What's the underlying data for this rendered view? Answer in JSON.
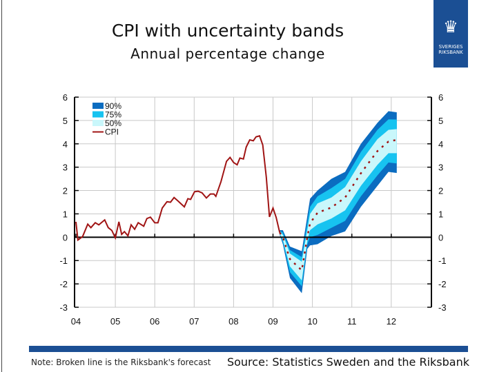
{
  "header": {
    "title": "CPI with uncertainty bands",
    "subtitle": "Annual percentage change"
  },
  "logo": {
    "text": "SVERIGES RIKSBANK"
  },
  "footer": {
    "note": "Note: Broken line is the Riksbank's forecast",
    "source": "Source: Statistics Sweden and the Riksbank"
  },
  "colors": {
    "band90": "#0b6cc0",
    "band75": "#17c3f0",
    "band50": "#c9f7fb",
    "cpi": "#a01414",
    "brand": "#1b4f94"
  },
  "chart_data": {
    "type": "area",
    "title": "CPI with uncertainty bands",
    "subtitle": "Annual percentage change",
    "xlabel": "",
    "ylabel": "",
    "xlim": [
      2004,
      2012.5
    ],
    "ylim": [
      -3,
      6
    ],
    "x_ticks": [
      2004,
      2005,
      2006,
      2007,
      2008,
      2009,
      2010,
      2011,
      2012
    ],
    "x_tick_labels": [
      "04",
      "05",
      "06",
      "07",
      "08",
      "09",
      "10",
      "11",
      "12"
    ],
    "y_ticks": [
      "-3",
      "-2",
      "-1",
      "0",
      "1",
      "2",
      "3",
      "4",
      "5",
      "6"
    ],
    "grid": true,
    "legend_position": "top-left",
    "legend": [
      "90%",
      "75%",
      "50%",
      "CPI"
    ],
    "cpi": {
      "name": "CPI",
      "x": [
        2004.0,
        2004.05,
        2004.17,
        2004.3,
        2004.38,
        2004.49,
        2004.58,
        2004.73,
        2004.82,
        2004.91,
        2005.0,
        2005.09,
        2005.16,
        2005.23,
        2005.32,
        2005.4,
        2005.49,
        2005.58,
        2005.72,
        2005.8,
        2005.89,
        2006.0,
        2006.08,
        2006.19,
        2006.31,
        2006.4,
        2006.49,
        2006.59,
        2006.75,
        2006.84,
        2006.91,
        2007.01,
        2007.1,
        2007.2,
        2007.31,
        2007.41,
        2007.5,
        2007.55,
        2007.68,
        2007.82,
        2007.91,
        2008.0,
        2008.09,
        2008.16,
        2008.25,
        2008.32,
        2008.41,
        2008.5,
        2008.57,
        2008.66,
        2008.74,
        2008.83,
        2008.91,
        2009.0,
        2009.08,
        2009.17
      ],
      "y": [
        0.66,
        -0.12,
        0.03,
        0.56,
        0.41,
        0.62,
        0.53,
        0.74,
        0.41,
        0.29,
        -0.03,
        0.66,
        0.12,
        0.24,
        0.06,
        0.53,
        0.34,
        0.62,
        0.47,
        0.8,
        0.86,
        0.62,
        0.62,
        1.25,
        1.52,
        1.5,
        1.7,
        1.55,
        1.3,
        1.65,
        1.62,
        1.95,
        1.97,
        1.9,
        1.68,
        1.85,
        1.85,
        1.75,
        2.38,
        3.25,
        3.42,
        3.2,
        3.1,
        3.39,
        3.35,
        3.86,
        4.17,
        4.13,
        4.3,
        4.34,
        3.95,
        2.57,
        0.87,
        1.25,
        0.85,
        0.2
      ]
    },
    "forecast": {
      "x": [
        2009.17,
        2009.25,
        2009.43,
        2009.73,
        2009.87,
        2009.94,
        2010.13,
        2010.48,
        2010.83,
        2011.23,
        2011.65,
        2011.93,
        2012.14
      ],
      "median": [
        0.2,
        0.0,
        -0.94,
        -1.42,
        0.0,
        0.6,
        1.05,
        1.27,
        1.7,
        2.74,
        3.69,
        4.1,
        4.17
      ],
      "lo90": [
        0.1,
        -0.3,
        -1.75,
        -2.4,
        -0.5,
        -0.35,
        -0.3,
        0.05,
        0.25,
        1.3,
        2.2,
        2.8,
        2.75
      ],
      "lo75": [
        0.12,
        -0.2,
        -1.5,
        -2.1,
        -0.3,
        0.0,
        0.1,
        0.4,
        0.7,
        1.75,
        2.65,
        3.2,
        3.16
      ],
      "lo50": [
        0.15,
        -0.1,
        -1.25,
        -1.85,
        -0.15,
        0.3,
        0.55,
        0.8,
        1.15,
        2.2,
        3.1,
        3.6,
        3.6
      ],
      "hi50": [
        0.25,
        0.1,
        -0.7,
        -1.05,
        0.3,
        1.0,
        1.45,
        1.7,
        2.15,
        3.25,
        4.2,
        4.6,
        4.63
      ],
      "hi75": [
        0.28,
        0.2,
        -0.55,
        -0.85,
        0.6,
        1.3,
        1.75,
        2.1,
        2.5,
        3.65,
        4.6,
        5.05,
        5.04
      ],
      "hi90": [
        0.3,
        0.3,
        -0.4,
        -0.6,
        0.9,
        1.65,
        2.0,
        2.5,
        2.8,
        4.0,
        4.9,
        5.4,
        5.35
      ]
    }
  }
}
